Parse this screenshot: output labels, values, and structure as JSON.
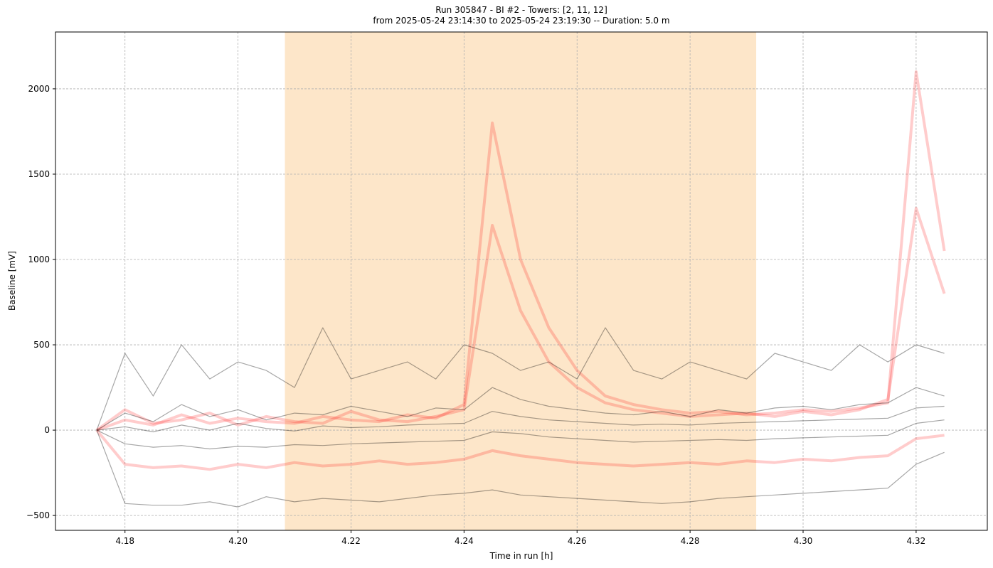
{
  "chart_data": {
    "type": "line",
    "title": "Run 305847  -  BI #2  -  Towers: [2, 11, 12]",
    "subtitle": "from  2025-05-24 23:14:30  to  2025-05-24 23:19:30 -- Duration: 5.0 m",
    "xlabel": "Time in run [h]",
    "ylabel": "Baseline [mV]",
    "xlim": [
      4.1677,
      4.3326
    ],
    "ylim": [
      -587,
      2333
    ],
    "xticks": [
      "4.18",
      "4.20",
      "4.22",
      "4.24",
      "4.26",
      "4.28",
      "4.30",
      "4.32"
    ],
    "yticks": [
      "−500",
      "0",
      "500",
      "1000",
      "1500",
      "2000"
    ],
    "grid": true,
    "shaded_interval": {
      "x": [
        4.2083,
        4.2917
      ],
      "color": "#fde6c9"
    },
    "colors": {
      "red": "#ff0000",
      "black": "#000000"
    },
    "x": [
      4.175,
      4.18,
      4.185,
      4.19,
      4.195,
      4.2,
      4.205,
      4.21,
      4.215,
      4.22,
      4.225,
      4.23,
      4.235,
      4.24,
      4.245,
      4.25,
      4.255,
      4.26,
      4.265,
      4.27,
      4.275,
      4.28,
      4.285,
      4.29,
      4.295,
      4.3,
      4.305,
      4.31,
      4.315,
      4.32,
      4.325
    ],
    "series": [
      {
        "color": "red",
        "values": [
          0,
          60,
          30,
          90,
          40,
          70,
          50,
          40,
          80,
          60,
          50,
          90,
          70,
          150,
          1800,
          1000,
          600,
          350,
          200,
          150,
          120,
          100,
          110,
          90,
          100,
          120,
          110,
          130,
          160,
          2100,
          1050
        ]
      },
      {
        "color": "red",
        "values": [
          0,
          120,
          40,
          60,
          100,
          30,
          80,
          50,
          40,
          110,
          60,
          50,
          80,
          120,
          1200,
          700,
          400,
          250,
          160,
          120,
          100,
          80,
          90,
          100,
          80,
          110,
          90,
          120,
          180,
          1300,
          800
        ]
      },
      {
        "color": "red",
        "values": [
          0,
          -200,
          -220,
          -210,
          -230,
          -200,
          -220,
          -190,
          -210,
          -200,
          -180,
          -200,
          -190,
          -170,
          -120,
          -150,
          -170,
          -190,
          -200,
          -210,
          -200,
          -190,
          -200,
          -180,
          -190,
          -170,
          -180,
          -160,
          -150,
          -50,
          -30
        ]
      },
      {
        "color": "black",
        "values": [
          0,
          450,
          200,
          500,
          300,
          400,
          350,
          250,
          600,
          300,
          350,
          400,
          300,
          500,
          450,
          350,
          400,
          300,
          600,
          350,
          300,
          400,
          350,
          300,
          450,
          400,
          350,
          500,
          400,
          500,
          450
        ]
      },
      {
        "color": "black",
        "values": [
          0,
          100,
          50,
          150,
          80,
          120,
          60,
          100,
          90,
          140,
          110,
          80,
          130,
          120,
          250,
          180,
          140,
          120,
          100,
          90,
          110,
          80,
          120,
          100,
          130,
          140,
          120,
          150,
          160,
          250,
          200
        ]
      },
      {
        "color": "black",
        "values": [
          0,
          20,
          -10,
          30,
          0,
          40,
          10,
          -5,
          25,
          15,
          20,
          30,
          35,
          40,
          110,
          80,
          60,
          50,
          40,
          30,
          35,
          30,
          40,
          45,
          50,
          55,
          60,
          65,
          70,
          130,
          140
        ]
      },
      {
        "color": "black",
        "values": [
          0,
          -80,
          -100,
          -90,
          -110,
          -95,
          -100,
          -85,
          -90,
          -80,
          -75,
          -70,
          -65,
          -60,
          -10,
          -20,
          -40,
          -50,
          -60,
          -70,
          -65,
          -60,
          -55,
          -60,
          -50,
          -45,
          -40,
          -35,
          -30,
          40,
          60
        ]
      },
      {
        "color": "black",
        "values": [
          0,
          -430,
          -440,
          -440,
          -420,
          -450,
          -390,
          -420,
          -400,
          -410,
          -420,
          -400,
          -380,
          -370,
          -350,
          -380,
          -390,
          -400,
          -410,
          -420,
          -430,
          -420,
          -400,
          -390,
          -380,
          -370,
          -360,
          -350,
          -340,
          -200,
          -130
        ]
      }
    ]
  }
}
